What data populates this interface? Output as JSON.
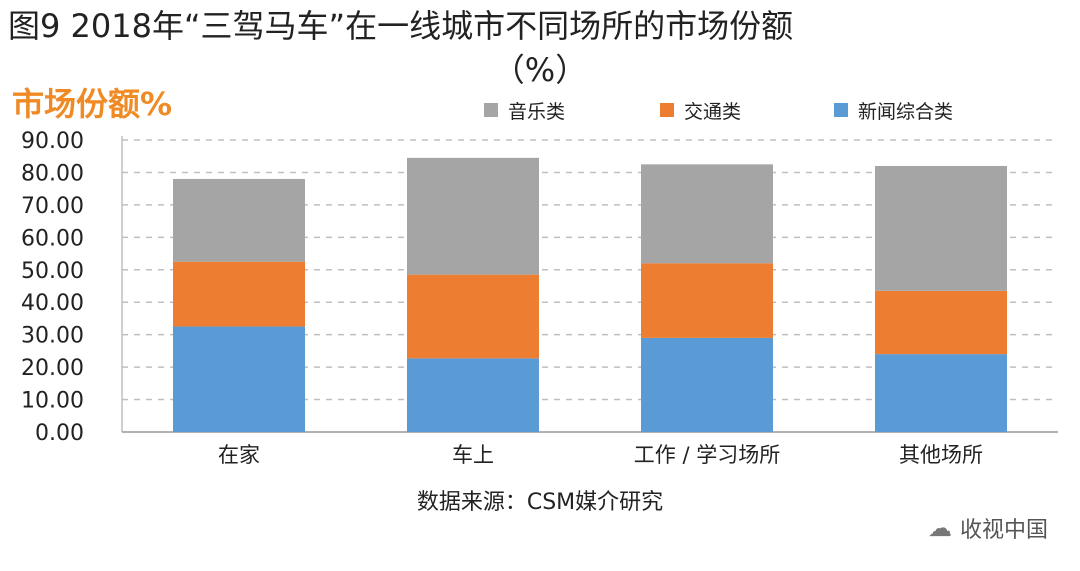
{
  "title_line1": "图9 2018年“三驾马车”在一线城市不同场所的市场份额",
  "title_line2": "（%）",
  "source": "数据来源：CSM媒介研究",
  "watermark": {
    "text": "收视中国",
    "icon": "wechat-icon"
  },
  "chart_data": {
    "type": "bar",
    "stacked": true,
    "ylabel": "市场份额%",
    "categories": [
      "在家",
      "车上",
      "工作 / 学习场所",
      "其他场所"
    ],
    "ylim": [
      0,
      90
    ],
    "yticks": [
      "0.00",
      "10.00",
      "20.00",
      "30.00",
      "40.00",
      "50.00",
      "60.00",
      "70.00",
      "80.00",
      "90.00"
    ],
    "grid": true,
    "legend_position": "top",
    "series": [
      {
        "name": "新闻综合类",
        "color": "#5b9bd5",
        "values": [
          32.5,
          22.7,
          29.0,
          24.0
        ]
      },
      {
        "name": "交通类",
        "color": "#ed7d31",
        "values": [
          20.0,
          25.8,
          23.0,
          19.5
        ]
      },
      {
        "name": "音乐类",
        "color": "#a5a5a5",
        "values": [
          25.5,
          36.0,
          30.5,
          38.5
        ]
      }
    ],
    "legend_order": [
      "音乐类",
      "交通类",
      "新闻综合类"
    ]
  }
}
